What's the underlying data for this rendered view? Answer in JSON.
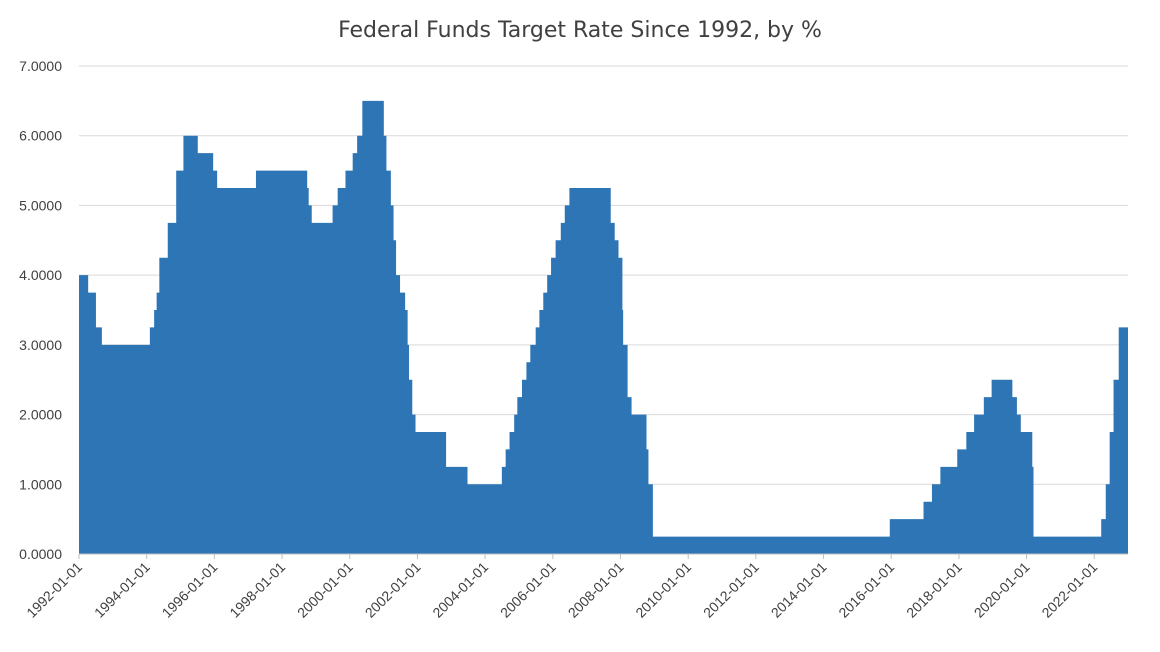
{
  "chart_data": {
    "type": "area",
    "title": "Federal Funds Target Rate Since 1992, by %",
    "xlabel": "",
    "ylabel": "",
    "ylim": [
      0,
      7
    ],
    "xlim": [
      "1992-01-01",
      "2022-12-31"
    ],
    "y_ticks": [
      "0.0000",
      "1.0000",
      "2.0000",
      "3.0000",
      "4.0000",
      "5.0000",
      "6.0000",
      "7.0000"
    ],
    "x_ticks": [
      "1992-01-01",
      "1994-01-01",
      "1996-01-01",
      "1998-01-01",
      "2000-01-01",
      "2002-01-01",
      "2004-01-01",
      "2006-01-01",
      "2008-01-01",
      "2010-01-01",
      "2012-01-01",
      "2014-01-01",
      "2016-01-01",
      "2018-01-01",
      "2020-01-01",
      "2022-01-01"
    ],
    "grid": true,
    "legend": "none",
    "color": "#2e75b6",
    "series": [
      {
        "x": [
          "1992-01-01",
          "1992-04-09",
          "1992-07-02",
          "1992-09-04",
          "1994-02-04",
          "1994-03-22",
          "1994-04-18",
          "1994-05-17",
          "1994-08-16",
          "1994-11-15",
          "1995-02-01",
          "1995-07-06",
          "1995-12-19",
          "1996-01-31",
          "1997-03-25",
          "1998-09-29",
          "1998-10-15",
          "1998-11-17",
          "1999-06-30",
          "1999-08-24",
          "1999-11-16",
          "2000-02-02",
          "2000-03-21",
          "2000-05-16",
          "2001-01-03",
          "2001-01-31",
          "2001-03-20",
          "2001-04-18",
          "2001-05-15",
          "2001-06-27",
          "2001-08-21",
          "2001-09-17",
          "2001-10-02",
          "2001-11-06",
          "2001-12-11",
          "2002-11-06",
          "2003-06-25",
          "2004-06-30",
          "2004-08-10",
          "2004-09-21",
          "2004-11-10",
          "2004-12-14",
          "2005-02-02",
          "2005-03-22",
          "2005-05-03",
          "2005-06-30",
          "2005-08-09",
          "2005-09-20",
          "2005-11-01",
          "2005-12-13",
          "2006-01-31",
          "2006-03-28",
          "2006-05-10",
          "2006-06-29",
          "2007-09-18",
          "2007-10-31",
          "2007-12-11",
          "2008-01-22",
          "2008-01-30",
          "2008-03-18",
          "2008-04-30",
          "2008-10-08",
          "2008-10-29",
          "2008-12-16",
          "2015-12-17",
          "2016-12-15",
          "2017-03-16",
          "2017-06-15",
          "2017-12-14",
          "2018-03-22",
          "2018-06-14",
          "2018-09-27",
          "2018-12-20",
          "2019-08-01",
          "2019-09-19",
          "2019-10-31",
          "2020-03-03",
          "2020-03-16",
          "2022-03-17",
          "2022-05-05",
          "2022-06-16",
          "2022-07-28",
          "2022-09-22",
          "2022-10-20"
        ],
        "values": [
          4.0,
          3.75,
          3.25,
          3.0,
          3.25,
          3.5,
          3.75,
          4.25,
          4.75,
          5.5,
          6.0,
          5.75,
          5.5,
          5.25,
          5.5,
          5.25,
          5.0,
          4.75,
          5.0,
          5.25,
          5.5,
          5.75,
          6.0,
          6.5,
          6.0,
          5.5,
          5.0,
          4.5,
          4.0,
          3.75,
          3.5,
          3.0,
          2.5,
          2.0,
          1.75,
          1.25,
          1.0,
          1.25,
          1.5,
          1.75,
          2.0,
          2.25,
          2.5,
          2.75,
          3.0,
          3.25,
          3.5,
          3.75,
          4.0,
          4.25,
          4.5,
          4.75,
          5.0,
          5.25,
          4.75,
          4.5,
          4.25,
          3.5,
          3.0,
          2.25,
          2.0,
          1.5,
          1.0,
          0.25,
          0.5,
          0.75,
          1.0,
          1.25,
          1.5,
          1.75,
          2.0,
          2.25,
          2.5,
          2.25,
          2.0,
          1.75,
          1.25,
          0.25,
          0.5,
          1.0,
          1.75,
          2.5,
          3.25,
          3.25
        ]
      }
    ]
  }
}
